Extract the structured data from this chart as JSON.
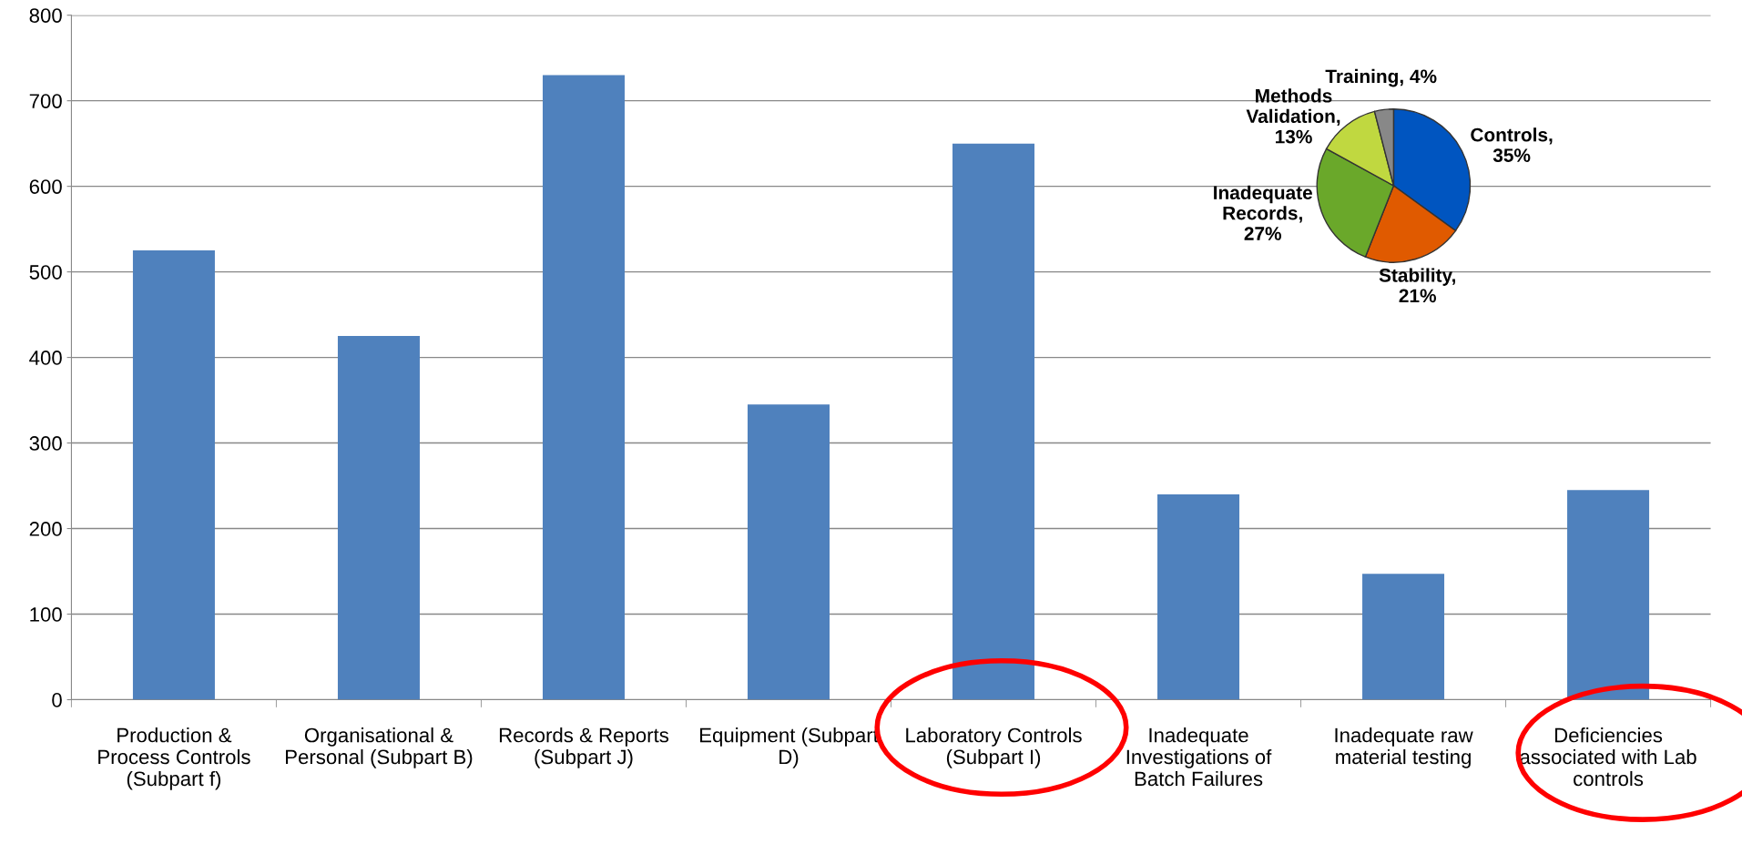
{
  "chart_data": [
    {
      "type": "bar",
      "categories": [
        "Production &\nProcess Controls\n(Subpart f)",
        "Organisational &\nPersonal (Subpart B)",
        "Records & Reports\n(Subpart J)",
        "Equipment (Subpart\nD)",
        "Laboratory Controls\n(Subpart I)",
        "Inadequate\nInvestigations of\nBatch Failures",
        "Inadequate raw\nmaterial testing",
        "Deficiencies\nassociated with Lab\ncontrols"
      ],
      "values": [
        525,
        425,
        730,
        345,
        650,
        240,
        147,
        245
      ],
      "color": "#4f81bd",
      "ylim": [
        0,
        800
      ],
      "yticks": [
        0,
        100,
        200,
        300,
        400,
        500,
        600,
        700,
        800
      ],
      "grid": "y"
    },
    {
      "type": "pie",
      "categories": [
        "Controls,\n35%",
        "Stability,\n21%",
        "Inadequate\nRecords,\n27%",
        "Methods\nValidation,\n13%",
        "Training, 4%"
      ],
      "values": [
        35,
        21,
        27,
        13,
        4
      ],
      "colors": [
        "#0055c0",
        "#e05a00",
        "#6aa82a",
        "#c0d840",
        "#888888"
      ]
    }
  ]
}
